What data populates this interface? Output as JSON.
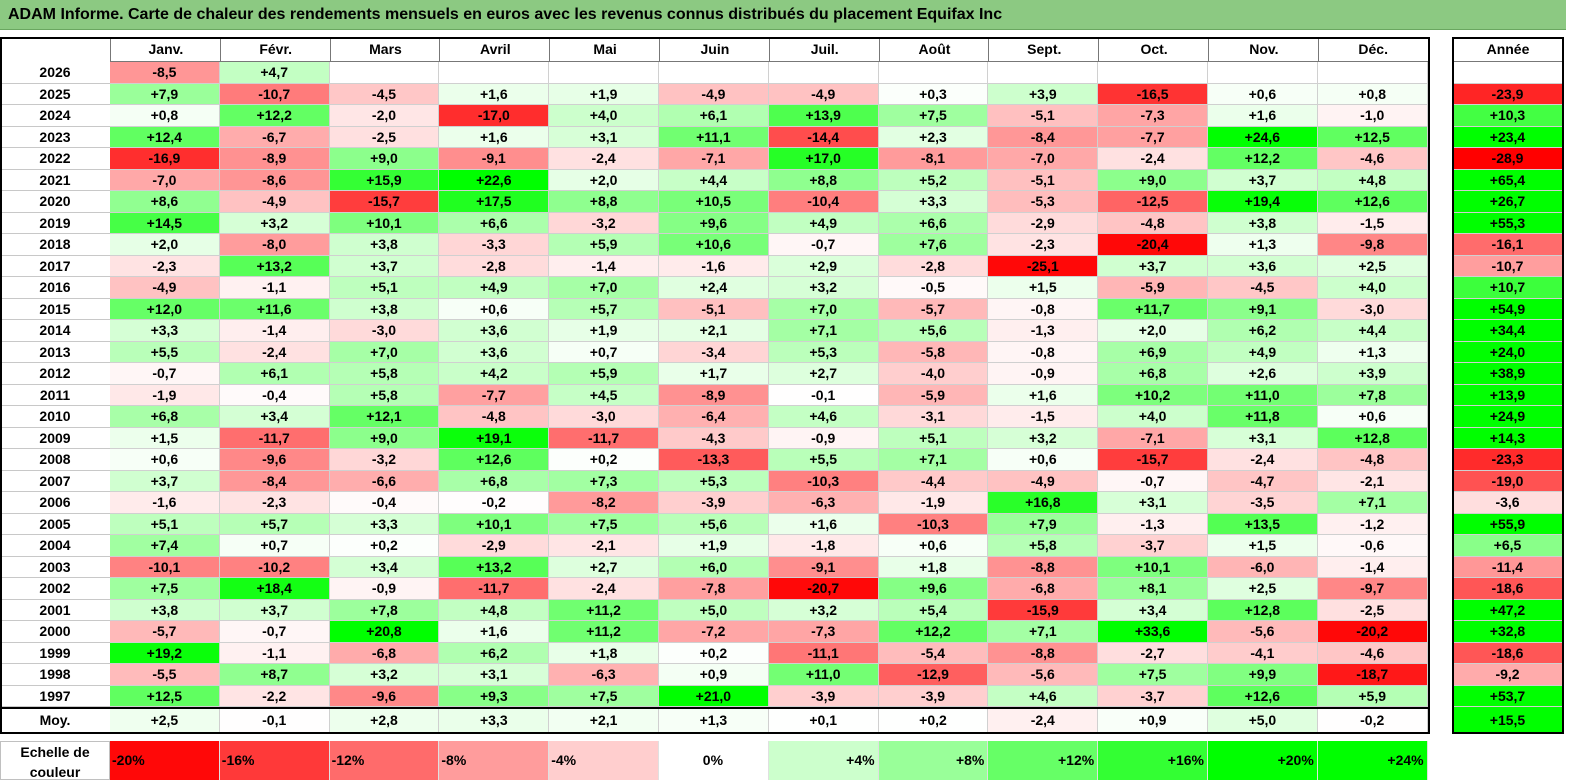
{
  "title": "ADAM Informe. Carte de chaleur des rendements mensuels en euros avec les revenus connus distribués du placement Equifax Inc",
  "colors": {
    "header_bar": "#8cc982",
    "negative_max": "#ff0000",
    "positive_max": "#00ff00",
    "neutral": "#ffffff"
  },
  "chart_data": {
    "type": "heatmap",
    "title": "ADAM Informe. Carte de chaleur des rendements mensuels en euros avec les revenus connus distribués du placement Equifax Inc",
    "columns": [
      "Janv.",
      "Févr.",
      "Mars",
      "Avril",
      "Mai",
      "Juin",
      "Juil.",
      "Août",
      "Sept.",
      "Oct.",
      "Nov.",
      "Déc."
    ],
    "year_column_label": "Année",
    "rows": [
      {
        "label": "2026",
        "values": [
          "-8,5",
          "+4,7",
          "",
          "",
          "",
          "",
          "",
          "",
          "",
          "",
          "",
          ""
        ],
        "year": ""
      },
      {
        "label": "2025",
        "values": [
          "+7,9",
          "-10,7",
          "-4,5",
          "+1,6",
          "+1,9",
          "-4,9",
          "-4,9",
          "+0,3",
          "+3,9",
          "-16,5",
          "+0,6",
          "+0,8"
        ],
        "year": "-23,9"
      },
      {
        "label": "2024",
        "values": [
          "+0,8",
          "+12,2",
          "-2,0",
          "-17,0",
          "+4,0",
          "+6,1",
          "+13,9",
          "+7,5",
          "-5,1",
          "-7,3",
          "+1,6",
          "-1,0"
        ],
        "year": "+10,3"
      },
      {
        "label": "2023",
        "values": [
          "+12,4",
          "-6,7",
          "-2,5",
          "+1,6",
          "+3,1",
          "+11,1",
          "-14,4",
          "+2,3",
          "-8,4",
          "-7,7",
          "+24,6",
          "+12,5"
        ],
        "year": "+23,4"
      },
      {
        "label": "2022",
        "values": [
          "-16,9",
          "-8,9",
          "+9,0",
          "-9,1",
          "-2,4",
          "-7,1",
          "+17,0",
          "-8,1",
          "-7,0",
          "-2,4",
          "+12,2",
          "-4,6"
        ],
        "year": "-28,9"
      },
      {
        "label": "2021",
        "values": [
          "-7,0",
          "-8,6",
          "+15,9",
          "+22,6",
          "+2,0",
          "+4,4",
          "+8,8",
          "+5,2",
          "-5,1",
          "+9,0",
          "+3,7",
          "+4,8"
        ],
        "year": "+65,4"
      },
      {
        "label": "2020",
        "values": [
          "+8,6",
          "-4,9",
          "-15,7",
          "+17,5",
          "+8,8",
          "+10,5",
          "-10,4",
          "+3,3",
          "-5,3",
          "-12,5",
          "+19,4",
          "+12,6"
        ],
        "year": "+26,7"
      },
      {
        "label": "2019",
        "values": [
          "+14,5",
          "+3,2",
          "+10,1",
          "+6,6",
          "-3,2",
          "+9,6",
          "+4,9",
          "+6,6",
          "-2,9",
          "-4,8",
          "+3,8",
          "-1,5"
        ],
        "year": "+55,3"
      },
      {
        "label": "2018",
        "values": [
          "+2,0",
          "-8,0",
          "+3,8",
          "-3,3",
          "+5,9",
          "+10,6",
          "-0,7",
          "+7,6",
          "-2,3",
          "-20,4",
          "+1,3",
          "-9,8"
        ],
        "year": "-16,1"
      },
      {
        "label": "2017",
        "values": [
          "-2,3",
          "+13,2",
          "+3,7",
          "-2,8",
          "-1,4",
          "-1,6",
          "+2,9",
          "-2,8",
          "-25,1",
          "+3,7",
          "+3,6",
          "+2,5"
        ],
        "year": "-10,7"
      },
      {
        "label": "2016",
        "values": [
          "-4,9",
          "-1,1",
          "+5,1",
          "+4,9",
          "+7,0",
          "+2,4",
          "+3,2",
          "-0,5",
          "+1,5",
          "-5,9",
          "-4,5",
          "+4,0"
        ],
        "year": "+10,7"
      },
      {
        "label": "2015",
        "values": [
          "+12,0",
          "+11,6",
          "+3,8",
          "+0,6",
          "+5,7",
          "-5,1",
          "+7,0",
          "-5,7",
          "-0,8",
          "+11,7",
          "+9,1",
          "-3,0"
        ],
        "year": "+54,9"
      },
      {
        "label": "2014",
        "values": [
          "+3,3",
          "-1,4",
          "-3,0",
          "+3,6",
          "+1,9",
          "+2,1",
          "+7,1",
          "+5,6",
          "-1,3",
          "+2,0",
          "+6,2",
          "+4,4"
        ],
        "year": "+34,4"
      },
      {
        "label": "2013",
        "values": [
          "+5,5",
          "-2,4",
          "+7,0",
          "+3,6",
          "+0,7",
          "-3,4",
          "+5,3",
          "-5,8",
          "-0,8",
          "+6,9",
          "+4,9",
          "+1,3"
        ],
        "year": "+24,0"
      },
      {
        "label": "2012",
        "values": [
          "-0,7",
          "+6,1",
          "+5,8",
          "+4,2",
          "+5,9",
          "+1,7",
          "+2,7",
          "-4,0",
          "-0,9",
          "+6,8",
          "+2,6",
          "+3,9"
        ],
        "year": "+38,9"
      },
      {
        "label": "2011",
        "values": [
          "-1,9",
          "-0,4",
          "+5,8",
          "-7,7",
          "+4,5",
          "-8,9",
          "-0,1",
          "-5,9",
          "+1,6",
          "+10,2",
          "+11,0",
          "+7,8"
        ],
        "year": "+13,9"
      },
      {
        "label": "2010",
        "values": [
          "+6,8",
          "+3,4",
          "+12,1",
          "-4,8",
          "-3,0",
          "-6,4",
          "+4,6",
          "-3,1",
          "-1,5",
          "+4,0",
          "+11,8",
          "+0,6"
        ],
        "year": "+24,9"
      },
      {
        "label": "2009",
        "values": [
          "+1,5",
          "-11,7",
          "+9,0",
          "+19,1",
          "-11,7",
          "-4,3",
          "-0,9",
          "+5,1",
          "+3,2",
          "-7,1",
          "+3,1",
          "+12,8"
        ],
        "year": "+14,3"
      },
      {
        "label": "2008",
        "values": [
          "+0,6",
          "-9,6",
          "-3,2",
          "+12,6",
          "+0,2",
          "-13,3",
          "+5,5",
          "+7,1",
          "+0,6",
          "-15,7",
          "-2,4",
          "-4,8"
        ],
        "year": "-23,3"
      },
      {
        "label": "2007",
        "values": [
          "+3,7",
          "-8,4",
          "-6,6",
          "+6,8",
          "+7,3",
          "+5,3",
          "-10,3",
          "-4,4",
          "-4,9",
          "-0,7",
          "-4,7",
          "-2,1"
        ],
        "year": "-19,0"
      },
      {
        "label": "2006",
        "values": [
          "-1,6",
          "-2,3",
          "-0,4",
          "-0,2",
          "-8,2",
          "-3,9",
          "-6,3",
          "-1,9",
          "+16,8",
          "+3,1",
          "-3,5",
          "+7,1"
        ],
        "year": "-3,6"
      },
      {
        "label": "2005",
        "values": [
          "+5,1",
          "+5,7",
          "+3,3",
          "+10,1",
          "+7,5",
          "+5,6",
          "+1,6",
          "-10,3",
          "+7,9",
          "-1,3",
          "+13,5",
          "-1,2"
        ],
        "year": "+55,9"
      },
      {
        "label": "2004",
        "values": [
          "+7,4",
          "+0,7",
          "+0,2",
          "-2,9",
          "-2,1",
          "+1,9",
          "-1,8",
          "+0,6",
          "+5,8",
          "-3,7",
          "+1,5",
          "-0,6"
        ],
        "year": "+6,5"
      },
      {
        "label": "2003",
        "values": [
          "-10,1",
          "-10,2",
          "+3,4",
          "+13,2",
          "+2,7",
          "+6,0",
          "-9,1",
          "+1,8",
          "-8,8",
          "+10,1",
          "-6,0",
          "-1,4"
        ],
        "year": "-11,4"
      },
      {
        "label": "2002",
        "values": [
          "+7,5",
          "+18,4",
          "-0,9",
          "-11,7",
          "-2,4",
          "-7,8",
          "-20,7",
          "+9,6",
          "-6,8",
          "+8,1",
          "+2,5",
          "-9,7"
        ],
        "year": "-18,6"
      },
      {
        "label": "2001",
        "values": [
          "+3,8",
          "+3,7",
          "+7,8",
          "+4,8",
          "+11,2",
          "+5,0",
          "+3,2",
          "+5,4",
          "-15,9",
          "+3,4",
          "+12,8",
          "-2,5"
        ],
        "year": "+47,2"
      },
      {
        "label": "2000",
        "values": [
          "-5,7",
          "-0,7",
          "+20,8",
          "+1,6",
          "+11,2",
          "-7,2",
          "-7,3",
          "+12,2",
          "+7,1",
          "+33,6",
          "-5,6",
          "-20,2"
        ],
        "year": "+32,8"
      },
      {
        "label": "1999",
        "values": [
          "+19,2",
          "-1,1",
          "-6,8",
          "+6,2",
          "+1,8",
          "+0,2",
          "-11,1",
          "-5,4",
          "-8,8",
          "-2,7",
          "-4,1",
          "-4,6"
        ],
        "year": "-18,6"
      },
      {
        "label": "1998",
        "values": [
          "-5,5",
          "+8,7",
          "+3,2",
          "+3,1",
          "-6,3",
          "+0,9",
          "+11,0",
          "-12,9",
          "-5,6",
          "+7,5",
          "+9,9",
          "-18,7"
        ],
        "year": "-9,2"
      },
      {
        "label": "1997",
        "values": [
          "+12,5",
          "-2,2",
          "-9,6",
          "+9,3",
          "+7,5",
          "+21,0",
          "-3,9",
          "-3,9",
          "+4,6",
          "-3,7",
          "+12,6",
          "+5,9"
        ],
        "year": "+53,7"
      }
    ],
    "average_row": {
      "label": "Moy.",
      "values": [
        "+2,5",
        "-0,1",
        "+2,8",
        "+3,3",
        "+2,1",
        "+1,3",
        "+0,1",
        "+0,2",
        "-2,4",
        "+0,9",
        "+5,0",
        "-0,2"
      ],
      "year": "+15,5"
    },
    "color_scale": {
      "label": "Echelle de couleur",
      "stops": [
        "-20%",
        "-16%",
        "-12%",
        "-8%",
        "-4%",
        "0%",
        "+4%",
        "+8%",
        "+12%",
        "+16%",
        "+20%",
        "+24%"
      ],
      "stop_values": [
        -20,
        -16,
        -12,
        -8,
        -4,
        0,
        4,
        8,
        12,
        16,
        20,
        24
      ]
    }
  }
}
